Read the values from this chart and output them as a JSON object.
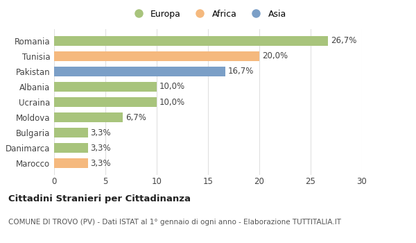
{
  "countries": [
    "Romania",
    "Tunisia",
    "Pakistan",
    "Albania",
    "Ucraina",
    "Moldova",
    "Bulgaria",
    "Danimarca",
    "Marocco"
  ],
  "values": [
    26.7,
    20.0,
    16.7,
    10.0,
    10.0,
    6.7,
    3.3,
    3.3,
    3.3
  ],
  "labels": [
    "26,7%",
    "20,0%",
    "16,7%",
    "10,0%",
    "10,0%",
    "6,7%",
    "3,3%",
    "3,3%",
    "3,3%"
  ],
  "colors": [
    "#a8c47c",
    "#f5b97e",
    "#7b9fc7",
    "#a8c47c",
    "#a8c47c",
    "#a8c47c",
    "#a8c47c",
    "#a8c47c",
    "#f5b97e"
  ],
  "continents": [
    "Europa",
    "Africa",
    "Asia"
  ],
  "legend_colors": [
    "#a8c47c",
    "#f5b97e",
    "#7b9fc7"
  ],
  "xlim": [
    0,
    30
  ],
  "xticks": [
    0,
    5,
    10,
    15,
    20,
    25,
    30
  ],
  "title": "Cittadini Stranieri per Cittadinanza",
  "subtitle": "COMUNE DI TROVO (PV) - Dati ISTAT al 1° gennaio di ogni anno - Elaborazione TUTTITALIA.IT",
  "background_color": "#ffffff",
  "grid_color": "#e0e0e0",
  "bar_height": 0.65,
  "label_fontsize": 8.5,
  "tick_fontsize": 8.5
}
